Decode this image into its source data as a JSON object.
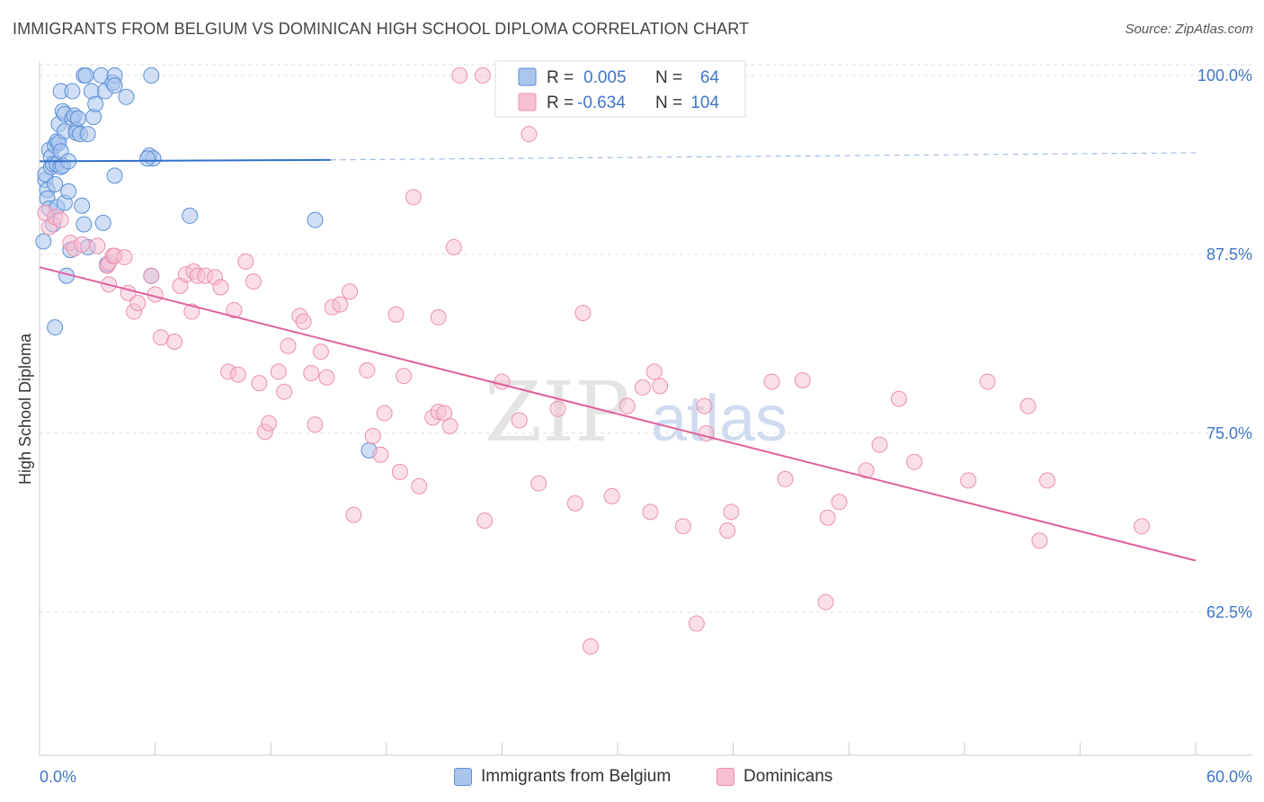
{
  "title": "IMMIGRANTS FROM BELGIUM VS DOMINICAN HIGH SCHOOL DIPLOMA CORRELATION CHART",
  "source": "Source: ZipAtlas.com",
  "watermark": {
    "zip": "ZIP",
    "atlas": "atlas"
  },
  "colors": {
    "blue_fill": "#a9c5ec",
    "blue_stroke": "#5a8fd6",
    "blue_line": "#2f6fcc",
    "pink_fill": "#f7bfd2",
    "pink_stroke": "#ec8fb0",
    "pink_line": "#e0609a",
    "axis_text": "#3f77c8",
    "grid": "#dddddd"
  },
  "legend_box": {
    "rows": [
      {
        "r_label": "R =",
        "r_value": "0.005",
        "n_label": "N =",
        "n_value": "64"
      },
      {
        "r_label": "R =",
        "r_value": "-0.634",
        "n_label": "N =",
        "n_value": "104"
      }
    ]
  },
  "legend_bottom": [
    {
      "label": "Immigrants from Belgium"
    },
    {
      "label": "Dominicans"
    }
  ],
  "chart_data": {
    "type": "scatter",
    "title": "IMMIGRANTS FROM BELGIUM VS DOMINICAN HIGH SCHOOL DIPLOMA CORRELATION CHART",
    "xlabel": "",
    "ylabel": "High School Diploma",
    "xlim": [
      0,
      60
    ],
    "ylim": [
      52.5,
      101
    ],
    "x_tick_labels": [
      "0.0%",
      "60.0%"
    ],
    "y_ticks": [
      62.5,
      75.0,
      87.5,
      100.0
    ],
    "y_tick_labels": [
      "62.5%",
      "75.0%",
      "87.5%",
      "100.0%"
    ],
    "grid": true,
    "legend_placement": "top-center",
    "series": [
      {
        "name": "Immigrants from Belgium",
        "color": "#5a8fd6",
        "trend": {
          "x": [
            0,
            15.1
          ],
          "y": [
            94.0,
            94.1
          ],
          "dashed_extension": {
            "x": [
              15.1,
              60
            ],
            "y": [
              94.1,
              94.6
            ]
          }
        },
        "points": [
          [
            0.2,
            88.4
          ],
          [
            0.3,
            92.7
          ],
          [
            0.3,
            93.1
          ],
          [
            0.4,
            92.0
          ],
          [
            0.4,
            91.4
          ],
          [
            0.5,
            94.8
          ],
          [
            0.5,
            90.7
          ],
          [
            0.6,
            94.3
          ],
          [
            0.6,
            93.6
          ],
          [
            0.7,
            93.8
          ],
          [
            0.7,
            89.6
          ],
          [
            0.8,
            95.1
          ],
          [
            0.8,
            92.4
          ],
          [
            0.8,
            82.4
          ],
          [
            0.9,
            95.4
          ],
          [
            0.9,
            93.8
          ],
          [
            0.9,
            90.8
          ],
          [
            1.0,
            96.6
          ],
          [
            1.0,
            95.3
          ],
          [
            1.1,
            98.9
          ],
          [
            1.1,
            94.7
          ],
          [
            1.1,
            93.6
          ],
          [
            1.2,
            97.5
          ],
          [
            1.2,
            93.7
          ],
          [
            1.3,
            97.3
          ],
          [
            1.3,
            96.1
          ],
          [
            1.3,
            91.1
          ],
          [
            1.4,
            86.0
          ],
          [
            1.5,
            94.0
          ],
          [
            1.5,
            91.9
          ],
          [
            1.6,
            87.8
          ],
          [
            1.7,
            98.9
          ],
          [
            1.7,
            97.0
          ],
          [
            1.8,
            97.2
          ],
          [
            1.9,
            96.2
          ],
          [
            1.9,
            96.0
          ],
          [
            2.0,
            97.0
          ],
          [
            2.1,
            95.9
          ],
          [
            2.2,
            90.9
          ],
          [
            2.3,
            89.6
          ],
          [
            2.3,
            100.0
          ],
          [
            2.4,
            100.0
          ],
          [
            2.5,
            88.0
          ],
          [
            2.5,
            95.9
          ],
          [
            2.7,
            98.9
          ],
          [
            2.8,
            97.1
          ],
          [
            2.9,
            98.0
          ],
          [
            3.2,
            100.0
          ],
          [
            3.3,
            89.7
          ],
          [
            3.4,
            98.9
          ],
          [
            3.5,
            86.8
          ],
          [
            3.8,
            99.5
          ],
          [
            3.9,
            100.0
          ],
          [
            3.9,
            99.3
          ],
          [
            3.9,
            93.0
          ],
          [
            4.5,
            98.5
          ],
          [
            5.8,
            100.0
          ],
          [
            5.7,
            94.4
          ],
          [
            5.9,
            94.2
          ],
          [
            5.6,
            94.2
          ],
          [
            5.8,
            86.0
          ],
          [
            7.8,
            90.2
          ],
          [
            14.3,
            89.9
          ],
          [
            17.1,
            73.8
          ]
        ]
      },
      {
        "name": "Dominicans",
        "color": "#ec8fb0",
        "trend": {
          "x": [
            0,
            60
          ],
          "y": [
            86.6,
            66.1
          ]
        },
        "points": [
          [
            0.3,
            90.4
          ],
          [
            0.5,
            89.4
          ],
          [
            0.8,
            90.1
          ],
          [
            1.1,
            89.9
          ],
          [
            1.6,
            88.3
          ],
          [
            1.8,
            87.9
          ],
          [
            2.2,
            88.2
          ],
          [
            3.0,
            88.1
          ],
          [
            3.5,
            86.7
          ],
          [
            3.6,
            86.9
          ],
          [
            3.6,
            85.4
          ],
          [
            3.8,
            87.4
          ],
          [
            3.9,
            87.4
          ],
          [
            4.4,
            87.3
          ],
          [
            4.6,
            84.8
          ],
          [
            4.9,
            83.5
          ],
          [
            5.1,
            84.1
          ],
          [
            5.8,
            86.0
          ],
          [
            6.0,
            84.7
          ],
          [
            6.3,
            81.7
          ],
          [
            7.0,
            81.4
          ],
          [
            7.3,
            85.3
          ],
          [
            7.6,
            86.1
          ],
          [
            7.9,
            83.5
          ],
          [
            8.0,
            86.3
          ],
          [
            8.2,
            86.0
          ],
          [
            8.6,
            86.0
          ],
          [
            9.1,
            85.9
          ],
          [
            9.4,
            85.2
          ],
          [
            9.8,
            79.3
          ],
          [
            10.1,
            83.6
          ],
          [
            10.3,
            79.1
          ],
          [
            10.7,
            87.0
          ],
          [
            11.1,
            85.6
          ],
          [
            11.4,
            78.5
          ],
          [
            11.7,
            75.1
          ],
          [
            11.9,
            75.7
          ],
          [
            12.4,
            79.3
          ],
          [
            12.7,
            77.9
          ],
          [
            12.9,
            81.1
          ],
          [
            13.5,
            83.2
          ],
          [
            13.7,
            82.8
          ],
          [
            14.1,
            79.2
          ],
          [
            14.3,
            75.6
          ],
          [
            14.6,
            80.7
          ],
          [
            14.9,
            78.9
          ],
          [
            15.2,
            83.8
          ],
          [
            15.6,
            84.0
          ],
          [
            16.1,
            84.9
          ],
          [
            16.3,
            69.3
          ],
          [
            17.0,
            79.4
          ],
          [
            17.3,
            74.8
          ],
          [
            17.7,
            73.5
          ],
          [
            17.9,
            76.4
          ],
          [
            18.5,
            83.3
          ],
          [
            18.7,
            72.3
          ],
          [
            18.9,
            79.0
          ],
          [
            19.4,
            91.5
          ],
          [
            19.7,
            71.3
          ],
          [
            20.4,
            76.1
          ],
          [
            20.7,
            76.5
          ],
          [
            20.7,
            83.1
          ],
          [
            21.0,
            76.4
          ],
          [
            21.3,
            75.5
          ],
          [
            21.5,
            88.0
          ],
          [
            23.1,
            68.9
          ],
          [
            24.0,
            78.6
          ],
          [
            24.9,
            75.9
          ],
          [
            25.9,
            71.5
          ],
          [
            26.9,
            76.7
          ],
          [
            27.8,
            70.1
          ],
          [
            28.2,
            83.4
          ],
          [
            28.6,
            60.1
          ],
          [
            29.7,
            70.6
          ],
          [
            30.5,
            76.9
          ],
          [
            31.3,
            78.2
          ],
          [
            31.7,
            69.5
          ],
          [
            31.9,
            79.3
          ],
          [
            32.2,
            78.3
          ],
          [
            33.4,
            68.5
          ],
          [
            34.1,
            61.7
          ],
          [
            34.5,
            76.9
          ],
          [
            34.6,
            75.0
          ],
          [
            35.7,
            68.2
          ],
          [
            35.9,
            69.5
          ],
          [
            38.0,
            78.6
          ],
          [
            38.7,
            71.8
          ],
          [
            39.6,
            78.7
          ],
          [
            40.8,
            63.2
          ],
          [
            40.9,
            69.1
          ],
          [
            41.5,
            70.2
          ],
          [
            42.9,
            72.4
          ],
          [
            43.6,
            74.2
          ],
          [
            44.6,
            77.4
          ],
          [
            45.4,
            73.0
          ],
          [
            48.2,
            71.7
          ],
          [
            49.2,
            78.6
          ],
          [
            51.3,
            76.9
          ],
          [
            51.9,
            67.5
          ],
          [
            52.3,
            71.7
          ],
          [
            57.2,
            68.5
          ],
          [
            21.8,
            100.0
          ],
          [
            23.0,
            100.0
          ],
          [
            25.4,
            95.9
          ]
        ]
      }
    ]
  }
}
